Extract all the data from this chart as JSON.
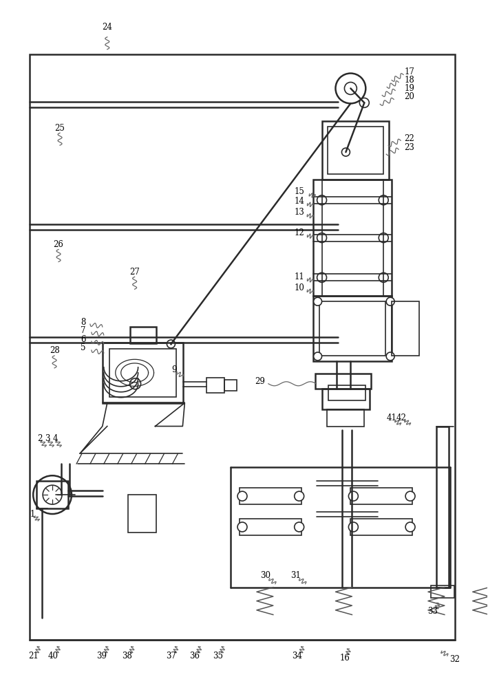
{
  "fig_width": 7.09,
  "fig_height": 10.0,
  "dpi": 100,
  "bg_color": "#ffffff",
  "lc": "#2a2a2a",
  "lw_heavy": 1.8,
  "lw_med": 1.2,
  "lw_thin": 0.9,
  "label_fs": 8.5
}
